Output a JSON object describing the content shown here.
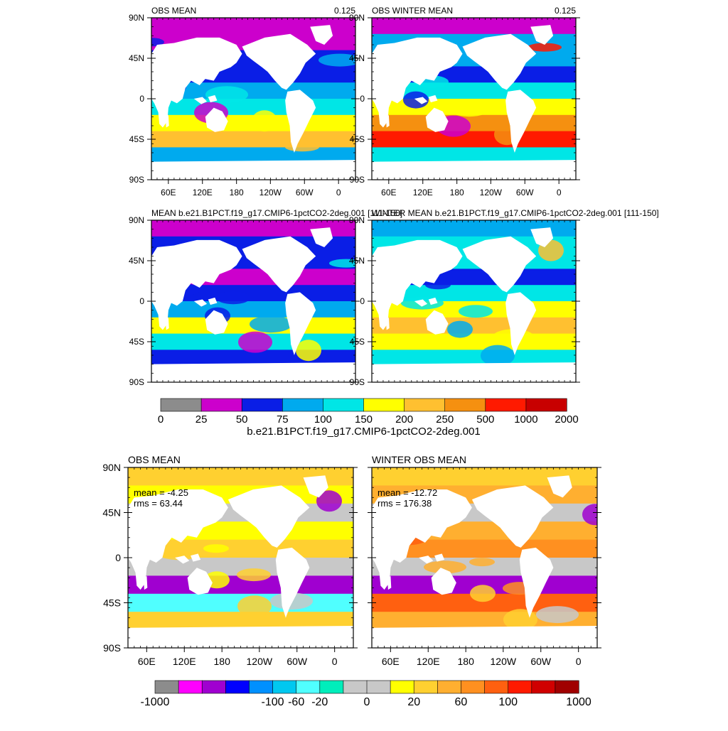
{
  "panels": [
    {
      "id": "p1",
      "title": "OBS MEAN",
      "right_label": "0.125",
      "show_lon": true,
      "small": true,
      "lat_ticks": [
        "90N",
        "45N",
        "0",
        "45S",
        "90S"
      ],
      "lon_ticks": [
        "60E",
        "120E",
        "180",
        "120W",
        "60W",
        "0"
      ]
    },
    {
      "id": "p2",
      "title": "OBS WINTER MEAN",
      "right_label": "0.125",
      "show_lon": true,
      "small": true,
      "lat_ticks": [
        "90N",
        "45N",
        "0",
        "45S",
        "90S"
      ],
      "lon_ticks": [
        "60E",
        "120E",
        "180",
        "120W",
        "60W",
        "0"
      ]
    },
    {
      "id": "p3",
      "title": "MEAN b.e21.B1PCT.f19_g17.CMIP6-1pctCO2-2deg.001 [111-150]",
      "right_label": "",
      "show_lon": false,
      "small": true,
      "lat_ticks": [
        "90N",
        "45N",
        "0",
        "45S",
        "90S"
      ],
      "lon_ticks": []
    },
    {
      "id": "p4",
      "title": "WINTER MEAN b.e21.B1PCT.f19_g17.CMIP6-1pctCO2-2deg.001 [111-150]",
      "right_label": "",
      "show_lon": false,
      "small": true,
      "lat_ticks": [
        "90N",
        "45N",
        "0",
        "45S",
        "90S"
      ],
      "lon_ticks": []
    },
    {
      "id": "p5",
      "title": "OBS MEAN",
      "right_label": "",
      "show_lon": true,
      "small": false,
      "mean": "mean = -4.25",
      "rms": "rms = 63.44",
      "lat_ticks": [
        "90N",
        "45N",
        "0",
        "45S",
        "90S"
      ],
      "lon_ticks": [
        "60E",
        "120E",
        "180",
        "120W",
        "60W",
        "0"
      ]
    },
    {
      "id": "p6",
      "title": "WINTER OBS MEAN",
      "right_label": "",
      "show_lon": true,
      "small": false,
      "mean": "mean = -12.72",
      "rms": "rms = 176.38",
      "lat_ticks": [],
      "lon_ticks": [
        "60E",
        "120E",
        "180",
        "120W",
        "60W",
        "0"
      ]
    }
  ],
  "colorbar1": {
    "colors": [
      "#8c8c8c",
      "#cc00cc",
      "#0a1ee6",
      "#00aaee",
      "#00e6e6",
      "#ffff00",
      "#ffc030",
      "#f59010",
      "#ff1a00",
      "#c80000"
    ],
    "labels": [
      "0",
      "25",
      "50",
      "75",
      "100",
      "150",
      "200",
      "250",
      "500",
      "1000",
      "2000"
    ],
    "caption": "b.e21.B1PCT.f19_g17.CMIP6-1pctCO2-2deg.001"
  },
  "colorbar2": {
    "colors": [
      "#8c8c8c",
      "#ff00ff",
      "#a000d0",
      "#0000ff",
      "#0090ff",
      "#00c8f0",
      "#50ffff",
      "#00eebb",
      "#c8c8c8",
      "#c8c8c8",
      "#ffff00",
      "#ffd030",
      "#ffaf30",
      "#ff9020",
      "#ff6010",
      "#ff1a00",
      "#d00000",
      "#a00000"
    ],
    "labels": [
      "-1000",
      "-100",
      "-60",
      "-20",
      "0",
      "20",
      "60",
      "100",
      "1000"
    ]
  }
}
